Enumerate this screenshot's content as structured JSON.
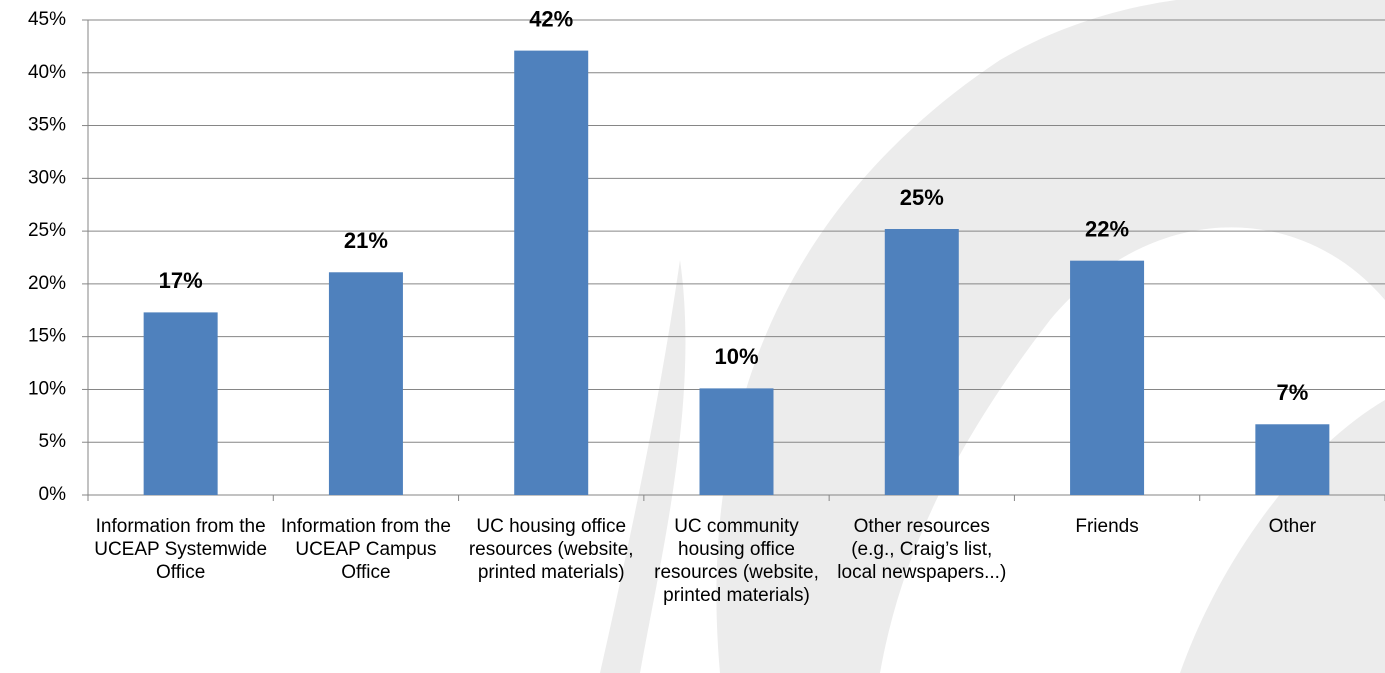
{
  "chart_data": {
    "type": "bar",
    "categories": [
      "Information from the UCEAP Systemwide Office",
      "Information from the UCEAP Campus Office",
      "UC housing office resources (website, printed materials)",
      "UC community housing office resources (website, printed materials)",
      "Other resources (e.g., Craig’s list, local newspapers...)",
      "Friends",
      "Other"
    ],
    "values": [
      17.3,
      21.1,
      42.1,
      10.1,
      25.2,
      22.2,
      6.7
    ],
    "value_labels": [
      "17%",
      "21%",
      "42%",
      "10%",
      "25%",
      "22%",
      "7%"
    ],
    "color": "#4f81bd",
    "ylim": [
      0,
      45
    ],
    "yticks": [
      {
        "value": 0,
        "label": "0%"
      },
      {
        "value": 5,
        "label": "5%"
      },
      {
        "value": 10,
        "label": "10%"
      },
      {
        "value": 15,
        "label": "15%"
      },
      {
        "value": 20,
        "label": "20%"
      },
      {
        "value": 25,
        "label": "25%"
      },
      {
        "value": 30,
        "label": "30%"
      },
      {
        "value": 35,
        "label": "35%"
      },
      {
        "value": 40,
        "label": "40%"
      },
      {
        "value": 45,
        "label": "45%"
      }
    ],
    "grid": true
  }
}
